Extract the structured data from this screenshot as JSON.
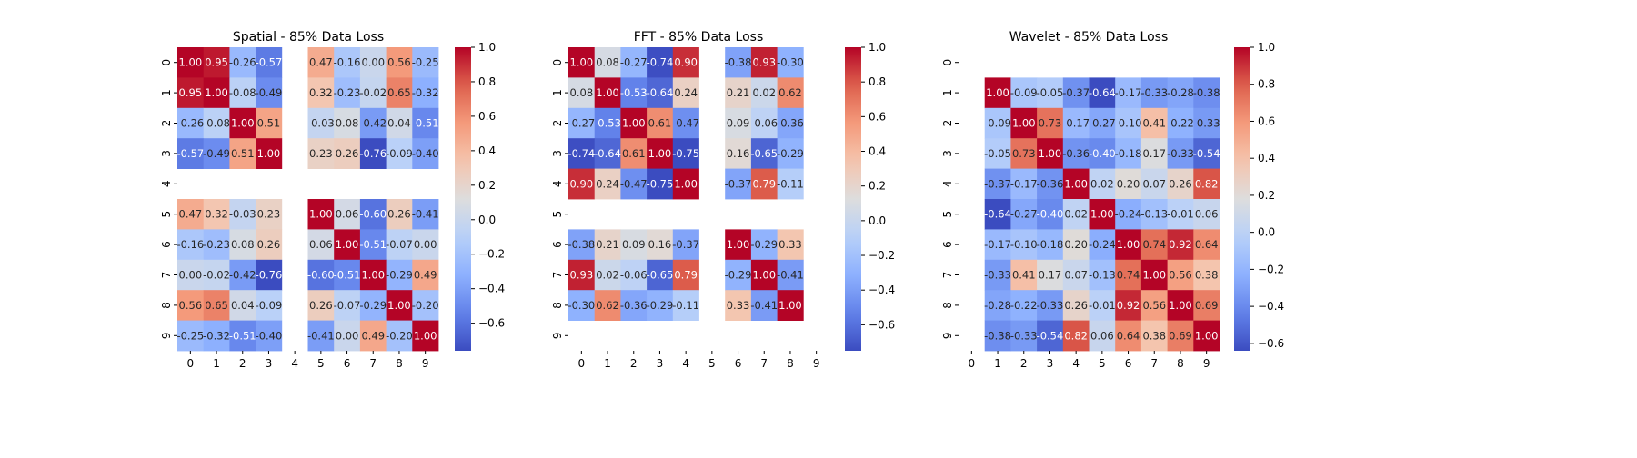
{
  "chart_data": [
    {
      "type": "heatmap",
      "title": "Spatial - 85% Data Loss",
      "x_tick_labels": [
        "0",
        "1",
        "2",
        "3",
        "4",
        "5",
        "6",
        "7",
        "8",
        "9"
      ],
      "y_tick_labels": [
        "0",
        "1",
        "2",
        "3",
        "4",
        "5",
        "6",
        "7",
        "8",
        "9"
      ],
      "colorbar": {
        "vmin": -0.76,
        "vmax": 1.0,
        "ticks": [
          1.0,
          0.8,
          0.6,
          0.4,
          0.2,
          0.0,
          -0.2,
          -0.4,
          -0.6
        ],
        "tick_labels": [
          "1.0",
          "0.8",
          "0.6",
          "0.4",
          "0.2",
          "0.0",
          "−0.2",
          "−0.4",
          "−0.6"
        ]
      },
      "colormap": "coolwarm",
      "values": [
        [
          1.0,
          0.95,
          -0.26,
          -0.57,
          null,
          0.47,
          -0.16,
          0.0,
          0.56,
          -0.25
        ],
        [
          0.95,
          1.0,
          -0.08,
          -0.49,
          null,
          0.32,
          -0.23,
          -0.02,
          0.65,
          -0.32
        ],
        [
          -0.26,
          -0.08,
          1.0,
          0.51,
          null,
          -0.03,
          0.08,
          -0.42,
          0.04,
          -0.51
        ],
        [
          -0.57,
          -0.49,
          0.51,
          1.0,
          null,
          0.23,
          0.26,
          -0.76,
          -0.09,
          -0.4
        ],
        [
          null,
          null,
          null,
          null,
          null,
          null,
          null,
          null,
          null,
          null
        ],
        [
          0.47,
          0.32,
          -0.03,
          0.23,
          null,
          1.0,
          0.06,
          -0.6,
          0.26,
          -0.41
        ],
        [
          -0.16,
          -0.23,
          0.08,
          0.26,
          null,
          0.06,
          1.0,
          -0.51,
          -0.07,
          0.0
        ],
        [
          0.0,
          -0.02,
          -0.42,
          -0.76,
          null,
          -0.6,
          -0.51,
          1.0,
          -0.29,
          0.49
        ],
        [
          0.56,
          0.65,
          0.04,
          -0.09,
          null,
          0.26,
          -0.07,
          -0.29,
          1.0,
          -0.2
        ],
        [
          -0.25,
          -0.32,
          -0.51,
          -0.4,
          null,
          -0.41,
          0.0,
          0.49,
          -0.2,
          1.0
        ]
      ]
    },
    {
      "type": "heatmap",
      "title": "FFT - 85% Data Loss",
      "x_tick_labels": [
        "0",
        "1",
        "2",
        "3",
        "4",
        "5",
        "6",
        "7",
        "8",
        "9"
      ],
      "y_tick_labels": [
        "0",
        "1",
        "2",
        "3",
        "4",
        "5",
        "6",
        "7",
        "8",
        "9"
      ],
      "colorbar": {
        "vmin": -0.75,
        "vmax": 1.0,
        "ticks": [
          1.0,
          0.8,
          0.6,
          0.4,
          0.2,
          0.0,
          -0.2,
          -0.4,
          -0.6
        ],
        "tick_labels": [
          "1.0",
          "0.8",
          "0.6",
          "0.4",
          "0.2",
          "0.0",
          "−0.2",
          "−0.4",
          "−0.6"
        ]
      },
      "colormap": "coolwarm",
      "values": [
        [
          1.0,
          0.08,
          -0.27,
          -0.74,
          0.9,
          null,
          -0.38,
          0.93,
          -0.3,
          null
        ],
        [
          0.08,
          1.0,
          -0.53,
          -0.64,
          0.24,
          null,
          0.21,
          0.02,
          0.62,
          null
        ],
        [
          -0.27,
          -0.53,
          1.0,
          0.61,
          -0.47,
          null,
          0.09,
          -0.06,
          -0.36,
          null
        ],
        [
          -0.74,
          -0.64,
          0.61,
          1.0,
          -0.75,
          null,
          0.16,
          -0.65,
          -0.29,
          null
        ],
        [
          0.9,
          0.24,
          -0.47,
          -0.75,
          1.0,
          null,
          -0.37,
          0.79,
          -0.11,
          null
        ],
        [
          null,
          null,
          null,
          null,
          null,
          null,
          null,
          null,
          null,
          null
        ],
        [
          -0.38,
          0.21,
          0.09,
          0.16,
          -0.37,
          null,
          1.0,
          -0.29,
          0.33,
          null
        ],
        [
          0.93,
          0.02,
          -0.06,
          -0.65,
          0.79,
          null,
          -0.29,
          1.0,
          -0.41,
          null
        ],
        [
          -0.3,
          0.62,
          -0.36,
          -0.29,
          -0.11,
          null,
          0.33,
          -0.41,
          1.0,
          null
        ],
        [
          null,
          null,
          null,
          null,
          null,
          null,
          null,
          null,
          null,
          null
        ]
      ]
    },
    {
      "type": "heatmap",
      "title": "Wavelet - 85% Data Loss",
      "x_tick_labels": [
        "0",
        "1",
        "2",
        "3",
        "4",
        "5",
        "6",
        "7",
        "8",
        "9"
      ],
      "y_tick_labels": [
        "0",
        "1",
        "2",
        "3",
        "4",
        "5",
        "6",
        "7",
        "8",
        "9"
      ],
      "colorbar": {
        "vmin": -0.64,
        "vmax": 1.0,
        "ticks": [
          1.0,
          0.8,
          0.6,
          0.4,
          0.2,
          0.0,
          -0.2,
          -0.4,
          -0.6
        ],
        "tick_labels": [
          "1.0",
          "0.8",
          "0.6",
          "0.4",
          "0.2",
          "0.0",
          "−0.2",
          "−0.4",
          "−0.6"
        ]
      },
      "colormap": "coolwarm",
      "values": [
        [
          null,
          null,
          null,
          null,
          null,
          null,
          null,
          null,
          null,
          null
        ],
        [
          null,
          1.0,
          -0.09,
          -0.05,
          -0.37,
          -0.64,
          -0.17,
          -0.33,
          -0.28,
          -0.38
        ],
        [
          null,
          -0.09,
          1.0,
          0.73,
          -0.17,
          -0.27,
          -0.1,
          0.41,
          -0.22,
          -0.33
        ],
        [
          null,
          -0.05,
          0.73,
          1.0,
          -0.36,
          -0.4,
          -0.18,
          0.17,
          -0.33,
          -0.54
        ],
        [
          null,
          -0.37,
          -0.17,
          -0.36,
          1.0,
          0.02,
          0.2,
          0.07,
          0.26,
          0.82
        ],
        [
          null,
          -0.64,
          -0.27,
          -0.4,
          0.02,
          1.0,
          -0.24,
          -0.13,
          -0.01,
          0.06
        ],
        [
          null,
          -0.17,
          -0.1,
          -0.18,
          0.2,
          -0.24,
          1.0,
          0.74,
          0.92,
          0.64
        ],
        [
          null,
          -0.33,
          0.41,
          0.17,
          0.07,
          -0.13,
          0.74,
          1.0,
          0.56,
          0.38
        ],
        [
          null,
          -0.28,
          -0.22,
          -0.33,
          0.26,
          -0.01,
          0.92,
          0.56,
          1.0,
          0.69
        ],
        [
          null,
          -0.38,
          -0.33,
          -0.54,
          0.82,
          0.06,
          0.64,
          0.38,
          0.69,
          1.0
        ]
      ]
    }
  ]
}
